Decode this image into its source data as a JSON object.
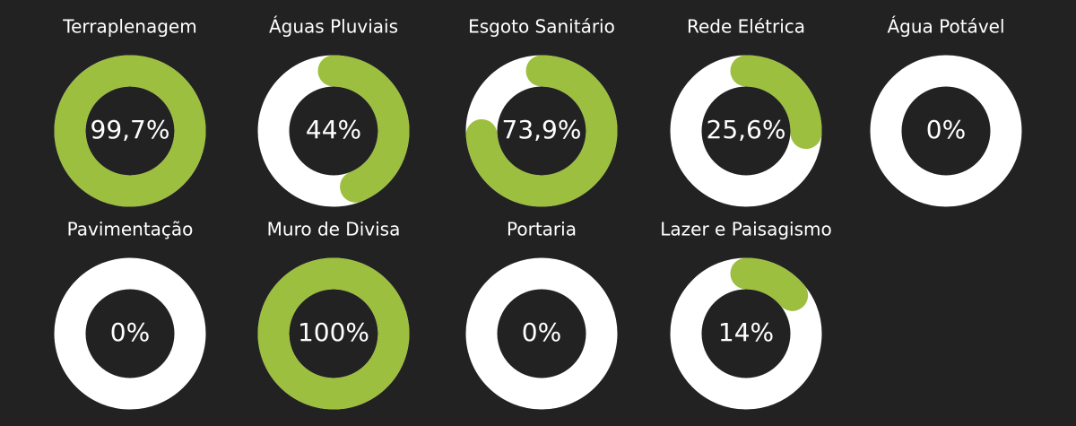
{
  "chart_data": {
    "type": "progress-rings",
    "categories": [
      "Terraplenagem",
      "Águas Pluviais",
      "Esgoto Sanitário",
      "Rede Elétrica",
      "Água Potável",
      "Pavimentação",
      "Muro de Divisa",
      "Portaria",
      "Lazer e Paisagismo"
    ],
    "values": [
      99.7,
      44,
      73.9,
      25.6,
      0,
      0,
      100,
      0,
      14
    ],
    "value_labels": [
      "99,7%",
      "44%",
      "73,9%",
      "25,6%",
      "0%",
      "0%",
      "100%",
      "0%",
      "14%"
    ],
    "color": "#9dbf3f",
    "track_color": "#ffffff"
  }
}
